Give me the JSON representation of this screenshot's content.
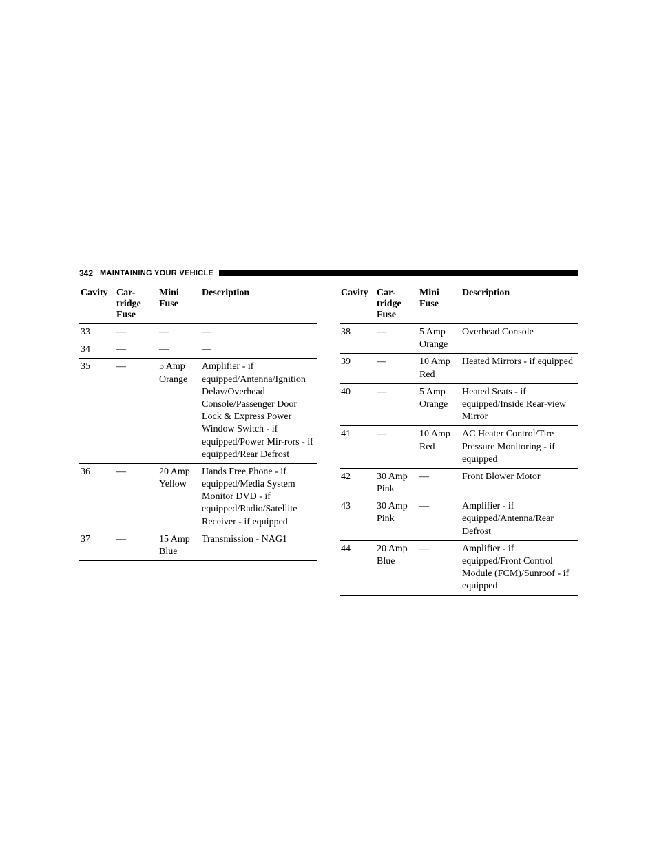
{
  "page_number": "342",
  "section_title": "MAINTAINING YOUR VEHICLE",
  "headers": {
    "cavity": "Cavity",
    "cartridge": "Car-tridge Fuse",
    "mini": "Mini Fuse",
    "description": "Description"
  },
  "left_rows": [
    {
      "cavity": "33",
      "cartridge": "—",
      "mini": "—",
      "desc": "—"
    },
    {
      "cavity": "34",
      "cartridge": "—",
      "mini": "—",
      "desc": "—"
    },
    {
      "cavity": "35",
      "cartridge": "—",
      "mini": "5 Amp Orange",
      "desc": "Amplifier - if equipped/Antenna/Ignition Delay/Overhead Console/Passenger Door Lock & Express Power Window Switch - if equipped/Power Mir-rors - if equipped/Rear Defrost"
    },
    {
      "cavity": "36",
      "cartridge": "—",
      "mini": "20 Amp Yellow",
      "desc": "Hands Free Phone - if equipped/Media System Monitor DVD - if equipped/Radio/Satellite Receiver - if equipped"
    },
    {
      "cavity": "37",
      "cartridge": "—",
      "mini": "15 Amp Blue",
      "desc": "Transmission - NAG1"
    }
  ],
  "right_rows": [
    {
      "cavity": "38",
      "cartridge": "—",
      "mini": "5 Amp Orange",
      "desc": "Overhead Console"
    },
    {
      "cavity": "39",
      "cartridge": "—",
      "mini": "10 Amp Red",
      "desc": "Heated Mirrors - if equipped"
    },
    {
      "cavity": "40",
      "cartridge": "—",
      "mini": "5 Amp Orange",
      "desc": "Heated Seats - if equipped/Inside Rear-view Mirror"
    },
    {
      "cavity": "41",
      "cartridge": "—",
      "mini": "10 Amp Red",
      "desc": "AC Heater Control/Tire Pressure Monitoring - if equipped"
    },
    {
      "cavity": "42",
      "cartridge": "30 Amp Pink",
      "mini": "—",
      "desc": "Front Blower Motor"
    },
    {
      "cavity": "43",
      "cartridge": "30 Amp Pink",
      "mini": "—",
      "desc": "Amplifier - if equipped/Antenna/Rear Defrost"
    },
    {
      "cavity": "44",
      "cartridge": "20 Amp Blue",
      "mini": "—",
      "desc": "Amplifier - if equipped/Front Control Module (FCM)/Sunroof - if equipped"
    }
  ]
}
